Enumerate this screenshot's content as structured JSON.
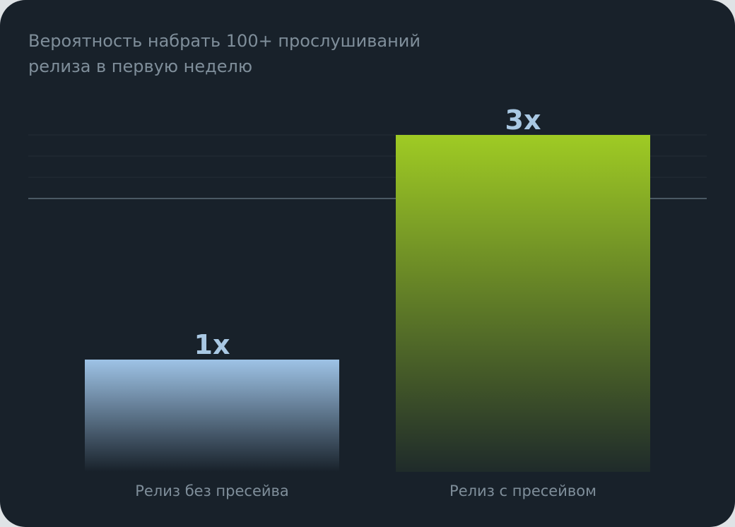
{
  "chart_data": {
    "type": "bar",
    "title": [
      "Вероятность набрать 100+ прослушиваний",
      "релиза в первую неделю"
    ],
    "categories": [
      "Релиз без пресейва",
      "Релиз с пресейвом"
    ],
    "values": [
      1,
      3
    ],
    "value_labels": [
      "1x",
      "3x"
    ],
    "ylim": [
      0,
      3
    ],
    "grid": true
  },
  "colors": {
    "background": "#18212a",
    "title": "#7f8e9a",
    "category_label": "#7f8e9a",
    "value_label": "#a9c8e3",
    "bar1_top": "#9ec3e6",
    "bar1_bottom": "#18212a",
    "bar2_top": "#9fcb24",
    "bar2_bottom": "#1f2b2a",
    "grid": "#232d36",
    "grid_strong": "#5c6c78"
  }
}
